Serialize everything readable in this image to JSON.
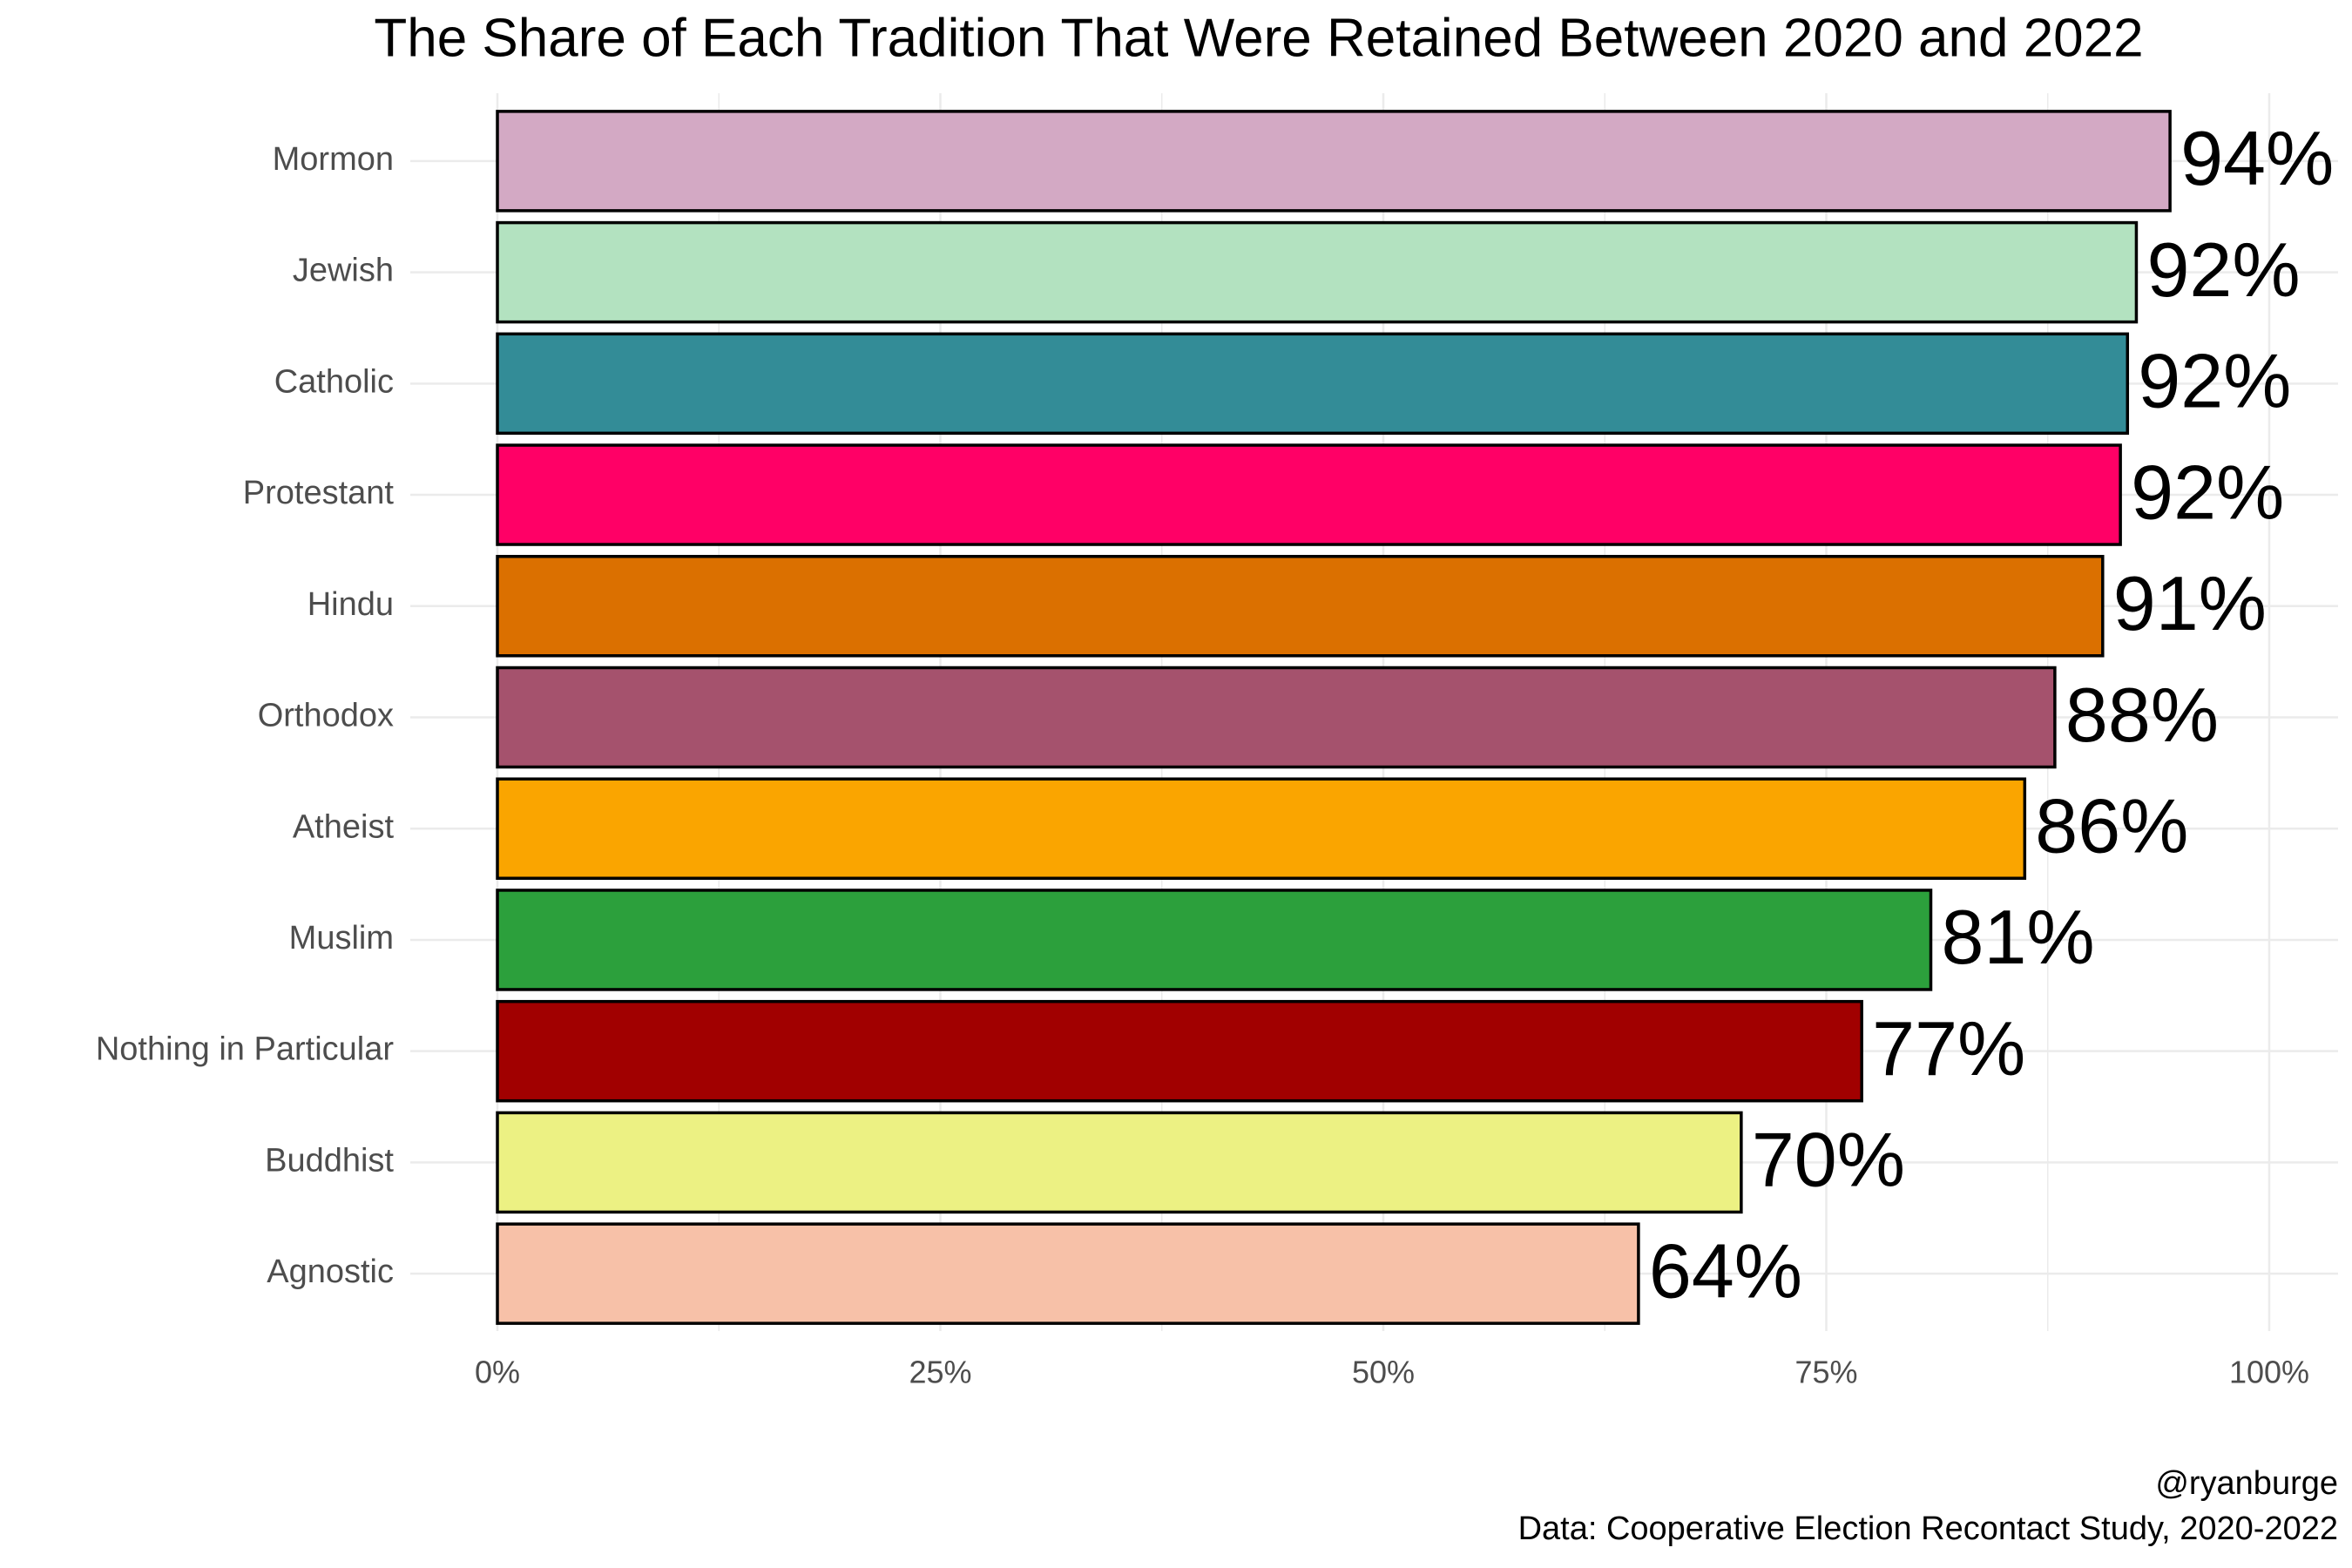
{
  "chart_data": {
    "type": "bar",
    "orientation": "horizontal",
    "title": "The Share of Each Tradition That Were Retained Between 2020 and 2022",
    "categories": [
      "Mormon",
      "Jewish",
      "Catholic",
      "Protestant",
      "Hindu",
      "Orthodox",
      "Atheist",
      "Muslim",
      "Nothing in Particular",
      "Buddhist",
      "Agnostic"
    ],
    "values": [
      94.4,
      92.5,
      92.0,
      91.6,
      90.6,
      87.9,
      86.2,
      80.9,
      77.0,
      70.2,
      64.4
    ],
    "value_labels": [
      "94%",
      "92%",
      "92%",
      "92%",
      "91%",
      "88%",
      "86%",
      "81%",
      "77%",
      "70%",
      "64%"
    ],
    "colors": [
      "#d3a9c4",
      "#b3e2c0",
      "#338c97",
      "#ff0066",
      "#db7000",
      "#a5526d",
      "#faa500",
      "#2ca03c",
      "#a10000",
      "#ecf183",
      "#f7c1a8"
    ],
    "xlim": [
      0,
      100
    ],
    "xticks": [
      {
        "value": 0,
        "label": "0%"
      },
      {
        "value": 25,
        "label": "25%"
      },
      {
        "value": 50,
        "label": "50%"
      },
      {
        "value": 75,
        "label": "75%"
      },
      {
        "value": 100,
        "label": "100%"
      }
    ],
    "xticks_minor": [
      12.5,
      37.5,
      62.5,
      87.5
    ],
    "grid": true,
    "caption": [
      "@ryanburge",
      "Data: Cooperative Election Recontact Study, 2020-2022"
    ]
  }
}
